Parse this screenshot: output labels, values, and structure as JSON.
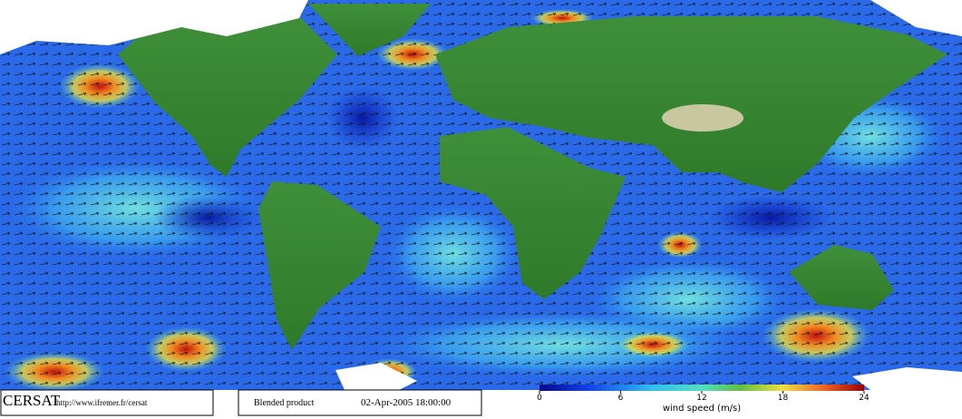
{
  "footer": {
    "brand": "CERSAT",
    "url": "http://www.ifremer.fr/cersat",
    "product": "Blended product",
    "date": "02-Apr-2005 18:00:00"
  },
  "colorbar": {
    "ticks": [
      0,
      6,
      12,
      18,
      24
    ],
    "label": "wind speed (m/s)"
  }
}
